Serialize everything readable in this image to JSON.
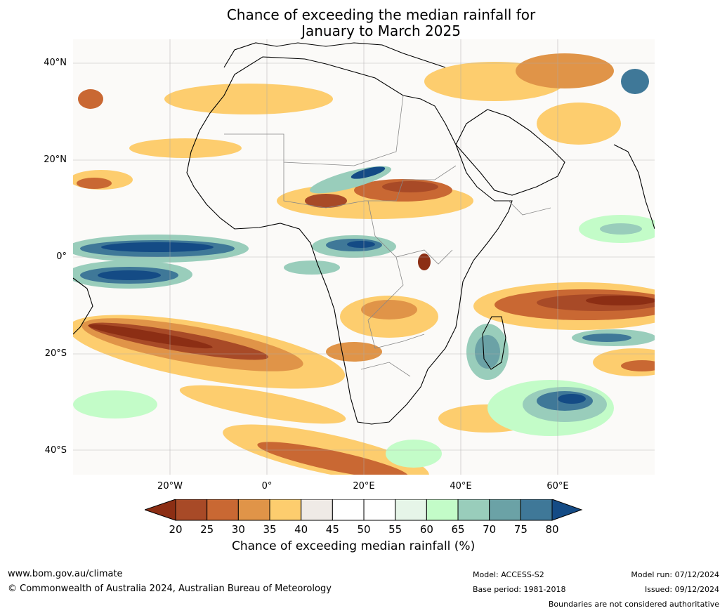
{
  "title": {
    "line1": "Chance of exceeding the median rainfall for",
    "line2": "January to March 2025"
  },
  "map": {
    "lat_ticks": [
      "40°N",
      "20°N",
      "0°",
      "20°S",
      "40°S"
    ],
    "lon_ticks": [
      "20°W",
      "0°",
      "20°E",
      "40°E",
      "60°E"
    ]
  },
  "legend": {
    "title": "Chance of exceeding median rainfall (%)",
    "labels": [
      "20",
      "25",
      "30",
      "35",
      "40",
      "45",
      "50",
      "55",
      "60",
      "65",
      "70",
      "75",
      "80"
    ],
    "colors": {
      "below_20": "#8c2e14",
      "20_25": "#a84a27",
      "25_30": "#c96833",
      "30_35": "#e09448",
      "35_40": "#fdcd6e",
      "40_45": "#efeae6",
      "45_50": "#ffffff",
      "50_55": "#ffffff",
      "55_60": "#e6f5e8",
      "60_65": "#c3fcc8",
      "65_70": "#99cdbb",
      "70_75": "#6ba2a6",
      "75_80": "#3f7898",
      "above_80": "#144b85"
    }
  },
  "footer": {
    "website": "www.bom.gov.au/climate",
    "copyright": "© Commonwealth of Australia 2024, Australian Bureau of Meteorology",
    "model": "Model: ACCESS-S2",
    "base_period": "Base period: 1981-2018",
    "model_run": "Model run: 07/12/2024",
    "issued": "Issued: 09/12/2024",
    "disclaimer": "Boundaries are not considered authoritative"
  }
}
